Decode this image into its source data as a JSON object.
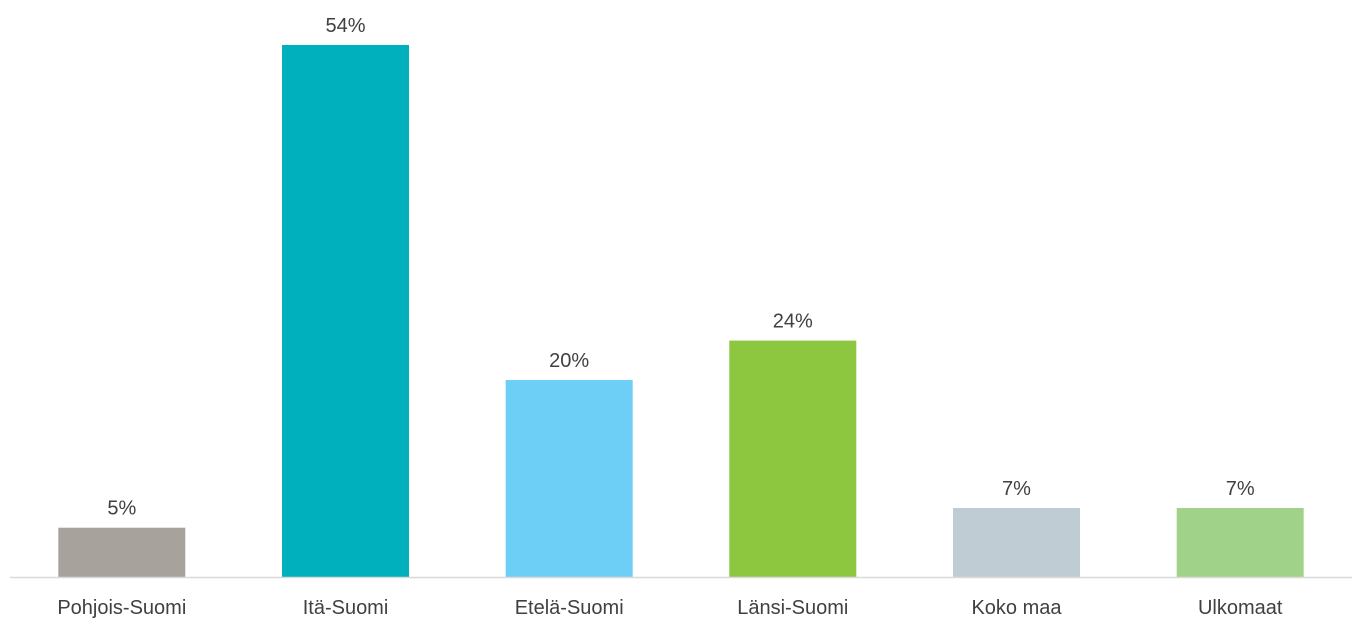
{
  "chart_data": {
    "type": "bar",
    "title": "",
    "xlabel": "",
    "ylabel": "",
    "categories": [
      "Pohjois-Suomi",
      "Itä-Suomi",
      "Etelä-Suomi",
      "Länsi-Suomi",
      "Koko maa",
      "Ulkomaat"
    ],
    "values": [
      5,
      54,
      20,
      24,
      7,
      7
    ],
    "value_labels": [
      "5%",
      "54%",
      "20%",
      "24%",
      "7%",
      "7%"
    ],
    "value_unit": "%",
    "ylim": [
      0,
      54
    ],
    "grid": false,
    "legend": "none",
    "colors": [
      "#a8a29d",
      "#00b0bd",
      "#6dcff6",
      "#8dc63f",
      "#bfccd4",
      "#a1d28a"
    ],
    "axis_color": "#d9d9d9"
  }
}
